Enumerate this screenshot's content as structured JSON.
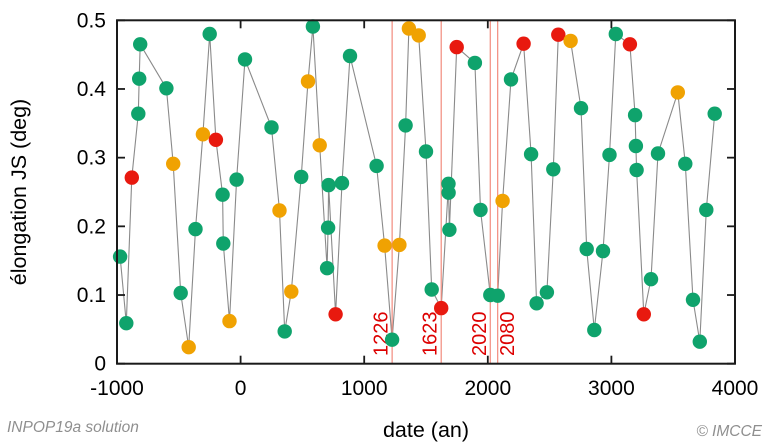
{
  "footer": {
    "left": "INPOP19a solution",
    "right": "© IMCCE"
  },
  "chart_data": {
    "type": "scatter",
    "title": "",
    "xlabel": "date (an)",
    "ylabel": "élongation JS (deg)",
    "xlim": [
      -1000,
      4000
    ],
    "ylim": [
      0,
      0.5
    ],
    "grid": false,
    "legend": null,
    "xticks": [
      -1000,
      0,
      1000,
      2000,
      3000,
      4000
    ],
    "xtick_labels": [
      "-1000",
      "0",
      "1000",
      "2000",
      "3000",
      "4000"
    ],
    "yticks": [
      0,
      0.1,
      0.2,
      0.3,
      0.4,
      0.5
    ],
    "ytick_labels": [
      "0",
      "0.1",
      "0.2",
      "0.3",
      "0.4",
      "0.5"
    ],
    "colors": {
      "g": "#0FA36C",
      "o": "#F0A202",
      "r": "#E8190F",
      "line": "#8A8A8A",
      "vline": "#F28B7D",
      "vline_label": "#DD0000",
      "frame": "#1a1a1a"
    },
    "vlines": [
      {
        "x": 1226,
        "label": "1226",
        "label_side": "left"
      },
      {
        "x": 1623,
        "label": "1623",
        "label_side": "left"
      },
      {
        "x": 2020,
        "label": "2020",
        "label_side": "left"
      },
      {
        "x": 2080,
        "label": "2080",
        "label_side": "right"
      }
    ],
    "series_note": "points = [date_an, elongation_deg, color g=green o=orange r=red], joined by a thin grey line in date order",
    "points": [
      [
        -975,
        0.156,
        "g"
      ],
      [
        -925,
        0.059,
        "g"
      ],
      [
        -880,
        0.271,
        "r"
      ],
      [
        -828,
        0.364,
        "g"
      ],
      [
        -820,
        0.415,
        "g"
      ],
      [
        -812,
        0.465,
        "g"
      ],
      [
        -600,
        0.401,
        "g"
      ],
      [
        -545,
        0.291,
        "o"
      ],
      [
        -485,
        0.103,
        "g"
      ],
      [
        -420,
        0.024,
        "o"
      ],
      [
        -365,
        0.196,
        "g"
      ],
      [
        -305,
        0.334,
        "o"
      ],
      [
        -250,
        0.48,
        "g"
      ],
      [
        -200,
        0.326,
        "r"
      ],
      [
        -146,
        0.246,
        "g"
      ],
      [
        -140,
        0.175,
        "g"
      ],
      [
        -90,
        0.062,
        "o"
      ],
      [
        -32,
        0.268,
        "g"
      ],
      [
        36,
        0.443,
        "g"
      ],
      [
        250,
        0.344,
        "g"
      ],
      [
        315,
        0.223,
        "o"
      ],
      [
        357,
        0.047,
        "g"
      ],
      [
        410,
        0.105,
        "o"
      ],
      [
        490,
        0.272,
        "g"
      ],
      [
        545,
        0.411,
        "o"
      ],
      [
        585,
        0.491,
        "g"
      ],
      [
        640,
        0.318,
        "o"
      ],
      [
        700,
        0.139,
        "g"
      ],
      [
        708,
        0.198,
        "g"
      ],
      [
        712,
        0.26,
        "g"
      ],
      [
        769,
        0.072,
        "r"
      ],
      [
        820,
        0.263,
        "g"
      ],
      [
        885,
        0.448,
        "g"
      ],
      [
        1100,
        0.288,
        "g"
      ],
      [
        1165,
        0.172,
        "o"
      ],
      [
        1226,
        0.035,
        "g"
      ],
      [
        1285,
        0.173,
        "o"
      ],
      [
        1335,
        0.347,
        "g"
      ],
      [
        1362,
        0.488,
        "o"
      ],
      [
        1441,
        0.478,
        "o"
      ],
      [
        1500,
        0.309,
        "g"
      ],
      [
        1546,
        0.108,
        "g"
      ],
      [
        1623,
        0.081,
        "r"
      ],
      [
        1682,
        0.262,
        "g"
      ],
      [
        1683,
        0.249,
        "g"
      ],
      [
        1689,
        0.195,
        "g"
      ],
      [
        1748,
        0.461,
        "r"
      ],
      [
        1896,
        0.438,
        "g"
      ],
      [
        1941,
        0.224,
        "g"
      ],
      [
        2020,
        0.1,
        "g"
      ],
      [
        2080,
        0.099,
        "g"
      ],
      [
        2120,
        0.237,
        "o"
      ],
      [
        2188,
        0.414,
        "g"
      ],
      [
        2290,
        0.466,
        "r"
      ],
      [
        2350,
        0.305,
        "g"
      ],
      [
        2395,
        0.088,
        "g"
      ],
      [
        2478,
        0.104,
        "g"
      ],
      [
        2530,
        0.283,
        "g"
      ],
      [
        2570,
        0.479,
        "r"
      ],
      [
        2670,
        0.47,
        "o"
      ],
      [
        2754,
        0.372,
        "g"
      ],
      [
        2800,
        0.167,
        "g"
      ],
      [
        2862,
        0.049,
        "g"
      ],
      [
        2932,
        0.164,
        "g"
      ],
      [
        2985,
        0.304,
        "g"
      ],
      [
        3036,
        0.48,
        "g"
      ],
      [
        3150,
        0.465,
        "r"
      ],
      [
        3192,
        0.362,
        "g"
      ],
      [
        3198,
        0.317,
        "g"
      ],
      [
        3204,
        0.282,
        "g"
      ],
      [
        3262,
        0.072,
        "r"
      ],
      [
        3320,
        0.123,
        "g"
      ],
      [
        3377,
        0.306,
        "g"
      ],
      [
        3537,
        0.395,
        "o"
      ],
      [
        3598,
        0.291,
        "g"
      ],
      [
        3660,
        0.093,
        "g"
      ],
      [
        3715,
        0.032,
        "g"
      ],
      [
        3768,
        0.224,
        "g"
      ],
      [
        3836,
        0.364,
        "g"
      ]
    ]
  }
}
